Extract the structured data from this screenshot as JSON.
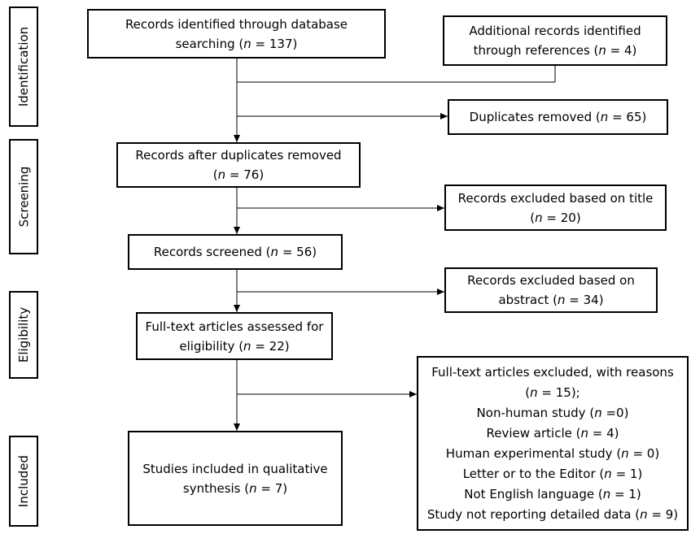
{
  "stages": [
    {
      "id": "identification",
      "label": "Identification"
    },
    {
      "id": "screening",
      "label": "Screening"
    },
    {
      "id": "eligibility",
      "label": "Eligibility"
    },
    {
      "id": "included",
      "label": "Included"
    }
  ],
  "boxes": {
    "database_search": {
      "line1": "Records identified through database",
      "line2": [
        {
          "t": "searching ("
        },
        {
          "t": "n",
          "i": true
        },
        {
          "t": " = 137)"
        }
      ]
    },
    "additional_records": {
      "line1": "Additional records identified",
      "line2": [
        {
          "t": "through references ("
        },
        {
          "t": "n",
          "i": true
        },
        {
          "t": " = 4)"
        }
      ]
    },
    "duplicates_removed": {
      "line1": [
        {
          "t": "Duplicates removed ("
        },
        {
          "t": "n",
          "i": true
        },
        {
          "t": " = 65)"
        }
      ]
    },
    "after_duplicates": {
      "line1": "Records after duplicates removed",
      "line2": [
        {
          "t": "("
        },
        {
          "t": "n",
          "i": true
        },
        {
          "t": " = 76)"
        }
      ]
    },
    "excluded_title": {
      "line1": "Records excluded based on title",
      "line2": [
        {
          "t": "("
        },
        {
          "t": "n",
          "i": true
        },
        {
          "t": " = 20)"
        }
      ]
    },
    "records_screened": {
      "line1": [
        {
          "t": "Records screened ("
        },
        {
          "t": "n",
          "i": true
        },
        {
          "t": " = 56)"
        }
      ]
    },
    "excluded_abstract": {
      "line1": "Records excluded based on",
      "line2": [
        {
          "t": "abstract ("
        },
        {
          "t": "n",
          "i": true
        },
        {
          "t": " = 34)"
        }
      ]
    },
    "fulltext_assessed": {
      "line1": "Full-text articles assessed for",
      "line2": [
        {
          "t": "eligibility ("
        },
        {
          "t": "n",
          "i": true
        },
        {
          "t": " = 22)"
        }
      ]
    },
    "fulltext_excluded": {
      "lines": [
        [
          {
            "t": "Full-text articles excluded, with reasons"
          }
        ],
        [
          {
            "t": "("
          },
          {
            "t": "n",
            "i": true
          },
          {
            "t": " = 15);"
          }
        ],
        [
          {
            "t": "Non-human study ("
          },
          {
            "t": "n",
            "i": true
          },
          {
            "t": " =0)"
          }
        ],
        [
          {
            "t": "Review article ("
          },
          {
            "t": "n",
            "i": true
          },
          {
            "t": " = 4)"
          }
        ],
        [
          {
            "t": "Human experimental study ("
          },
          {
            "t": "n",
            "i": true
          },
          {
            "t": " = 0)"
          }
        ],
        [
          {
            "t": "Letter or to the Editor ("
          },
          {
            "t": "n",
            "i": true
          },
          {
            "t": " = 1)"
          }
        ],
        [
          {
            "t": "Not English language ("
          },
          {
            "t": "n",
            "i": true
          },
          {
            "t": " = 1)"
          }
        ],
        [
          {
            "t": "Study not reporting detailed data ("
          },
          {
            "t": "n",
            "i": true
          },
          {
            "t": " = 9)"
          }
        ]
      ]
    },
    "included_studies": {
      "line1": "Studies included in qualitative",
      "line2": [
        {
          "t": "synthesis ("
        },
        {
          "t": "n",
          "i": true
        },
        {
          "t": " = 7)"
        }
      ]
    }
  }
}
